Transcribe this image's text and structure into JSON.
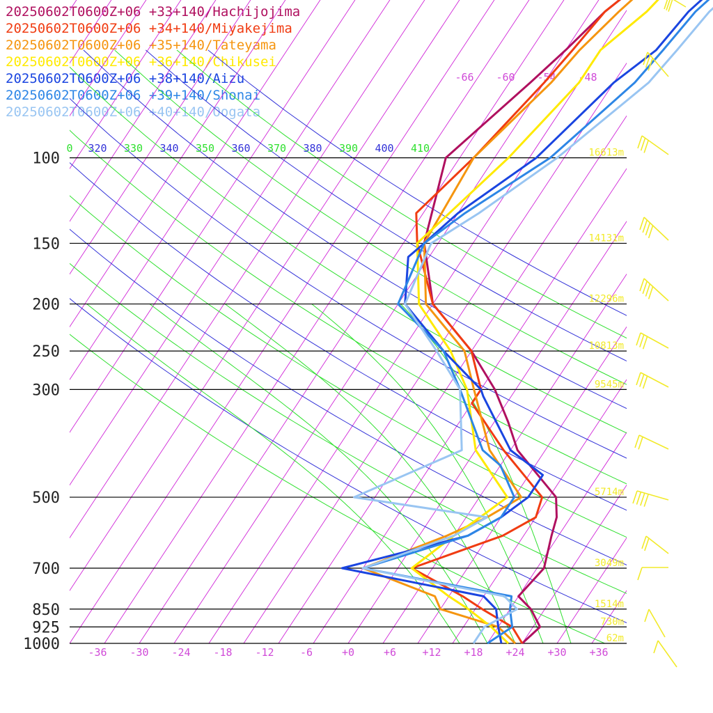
{
  "chart_data": {
    "type": "line",
    "title": "",
    "xlabel": "",
    "ylabel": "",
    "xlim": [
      -40,
      40
    ],
    "x_ticks": [
      "-36",
      "-30",
      "-24",
      "-18",
      "-12",
      "-6",
      "+0",
      "+6",
      "+12",
      "+18",
      "+24",
      "+30",
      "+36"
    ],
    "pressure_levels": [
      100,
      150,
      200,
      250,
      300,
      500,
      700,
      850,
      925,
      1000
    ],
    "height_labels": [
      {
        "p": 100,
        "label": "16613m"
      },
      {
        "p": 150,
        "label": "14131m"
      },
      {
        "p": 200,
        "label": "12296m"
      },
      {
        "p": 250,
        "label": "10813m"
      },
      {
        "p": 300,
        "label": "9545m"
      },
      {
        "p": 500,
        "label": "5714m"
      },
      {
        "p": 700,
        "label": "3049m"
      },
      {
        "p": 850,
        "label": "1514m"
      },
      {
        "p": 925,
        "label": "730m"
      },
      {
        "p": 1000,
        "label": "62m"
      }
    ],
    "theta_labels": [
      "0",
      "320",
      "330",
      "340",
      "350",
      "360",
      "370",
      "380",
      "390",
      "400",
      "410"
    ],
    "isotherm_labels": [
      "-66",
      "-60",
      "-54",
      "-48"
    ],
    "series": [
      {
        "name": "20250602T0600Z+06 +33+140/Hachijojima",
        "color": "#b0105f",
        "points": [
          [
            1000,
            25
          ],
          [
            925,
            26
          ],
          [
            850,
            23
          ],
          [
            800,
            20
          ],
          [
            700,
            21
          ],
          [
            600,
            19
          ],
          [
            550,
            18
          ],
          [
            500,
            16
          ],
          [
            400,
            6
          ],
          [
            350,
            2
          ],
          [
            300,
            -3
          ],
          [
            250,
            -10
          ],
          [
            200,
            -20
          ],
          [
            150,
            -27
          ],
          [
            100,
            -32
          ],
          [
            70,
            -27
          ],
          [
            60,
            -25
          ],
          [
            50,
            -23
          ],
          [
            40,
            -19
          ],
          [
            30,
            -10
          ],
          [
            20,
            5
          ],
          [
            15,
            19
          ]
        ]
      },
      {
        "name": "20250602T0600Z+06 +34+140/Miyakejima",
        "color": "#f03c12",
        "points": [
          [
            1000,
            25
          ],
          [
            925,
            22
          ],
          [
            850,
            16
          ],
          [
            800,
            12
          ],
          [
            700,
            2
          ],
          [
            600,
            12
          ],
          [
            550,
            15
          ],
          [
            500,
            14
          ],
          [
            400,
            4
          ],
          [
            320,
            -5
          ],
          [
            300,
            -5
          ],
          [
            250,
            -10
          ],
          [
            200,
            -20
          ],
          [
            150,
            -28
          ],
          [
            130,
            -31
          ],
          [
            100,
            -28
          ],
          [
            70,
            -25
          ],
          [
            60,
            -24
          ],
          [
            50,
            -23
          ],
          [
            40,
            -19
          ],
          [
            30,
            -11
          ],
          [
            20,
            5
          ],
          [
            15,
            18
          ]
        ]
      },
      {
        "name": "20250602T0600Z+06 +35+140/Tateyama",
        "color": "#f5950f",
        "points": [
          [
            1000,
            24
          ],
          [
            925,
            20
          ],
          [
            850,
            10
          ],
          [
            800,
            8
          ],
          [
            700,
            -5
          ],
          [
            600,
            4
          ],
          [
            550,
            8
          ],
          [
            500,
            11
          ],
          [
            400,
            2
          ],
          [
            300,
            -6
          ],
          [
            250,
            -11
          ],
          [
            200,
            -21
          ],
          [
            150,
            -27
          ],
          [
            100,
            -28
          ],
          [
            70,
            -24
          ],
          [
            60,
            -23
          ],
          [
            50,
            -21
          ],
          [
            40,
            -18
          ],
          [
            30,
            -11
          ],
          [
            20,
            5
          ],
          [
            15,
            19
          ]
        ]
      },
      {
        "name": "20250602T0600Z+06 +36+140/Chikusei",
        "color": "#ffea00",
        "points": [
          [
            1000,
            23
          ],
          [
            925,
            19
          ],
          [
            850,
            14
          ],
          [
            800,
            10
          ],
          [
            700,
            2
          ],
          [
            600,
            5
          ],
          [
            550,
            7
          ],
          [
            500,
            9
          ],
          [
            400,
            0
          ],
          [
            300,
            -7
          ],
          [
            250,
            -13
          ],
          [
            200,
            -22
          ],
          [
            150,
            -28
          ],
          [
            100,
            -23
          ],
          [
            70,
            -20
          ],
          [
            60,
            -20
          ],
          [
            50,
            -17
          ],
          [
            40,
            -15
          ],
          [
            30,
            -9
          ],
          [
            20,
            6
          ],
          [
            15,
            19
          ]
        ]
      },
      {
        "name": "20250602T0600Z+06 +38+140/Aizu",
        "color": "#1a45e0",
        "points": [
          [
            1000,
            22
          ],
          [
            925,
            20
          ],
          [
            850,
            18
          ],
          [
            800,
            15
          ],
          [
            700,
            -8
          ],
          [
            600,
            7
          ],
          [
            550,
            10
          ],
          [
            500,
            12
          ],
          [
            450,
            12
          ],
          [
            400,
            5
          ],
          [
            310,
            -4
          ],
          [
            300,
            -5
          ],
          [
            250,
            -14
          ],
          [
            200,
            -24
          ],
          [
            160,
            -28
          ],
          [
            150,
            -27
          ],
          [
            130,
            -25
          ],
          [
            100,
            -19
          ],
          [
            70,
            -15
          ],
          [
            60,
            -12
          ],
          [
            50,
            -11
          ],
          [
            40,
            -8
          ],
          [
            30,
            -3
          ],
          [
            20,
            9
          ],
          [
            15,
            21
          ]
        ]
      },
      {
        "name": "20250602T0600Z+06 +39+140/Shonai",
        "color": "#2d86e6",
        "points": [
          [
            1000,
            20
          ],
          [
            925,
            22
          ],
          [
            850,
            20
          ],
          [
            800,
            19
          ],
          [
            700,
            -5
          ],
          [
            600,
            7
          ],
          [
            550,
            10
          ],
          [
            500,
            10
          ],
          [
            430,
            5
          ],
          [
            400,
            1
          ],
          [
            300,
            -8
          ],
          [
            250,
            -14
          ],
          [
            200,
            -25
          ],
          [
            150,
            -27
          ],
          [
            130,
            -24
          ],
          [
            100,
            -17
          ],
          [
            70,
            -12
          ],
          [
            60,
            -11
          ],
          [
            50,
            -10
          ],
          [
            40,
            -7
          ],
          [
            30,
            -3
          ],
          [
            20,
            9
          ],
          [
            15,
            22
          ]
        ]
      },
      {
        "name": "20250602T0600Z+06 +40+140/Oogata",
        "color": "#99c5f2",
        "points": [
          [
            1000,
            18
          ],
          [
            925,
            18
          ],
          [
            850,
            21
          ],
          [
            800,
            18
          ],
          [
            700,
            -5
          ],
          [
            600,
            5
          ],
          [
            550,
            8
          ],
          [
            500,
            -13
          ],
          [
            400,
            -2
          ],
          [
            300,
            -8
          ],
          [
            250,
            -15
          ],
          [
            200,
            -24
          ],
          [
            150,
            -26
          ],
          [
            130,
            -22
          ],
          [
            100,
            -16
          ],
          [
            70,
            -10
          ],
          [
            60,
            -9
          ],
          [
            50,
            -8
          ],
          [
            40,
            -5
          ],
          [
            30,
            -1
          ],
          [
            20,
            11
          ],
          [
            15,
            23
          ]
        ]
      }
    ]
  }
}
